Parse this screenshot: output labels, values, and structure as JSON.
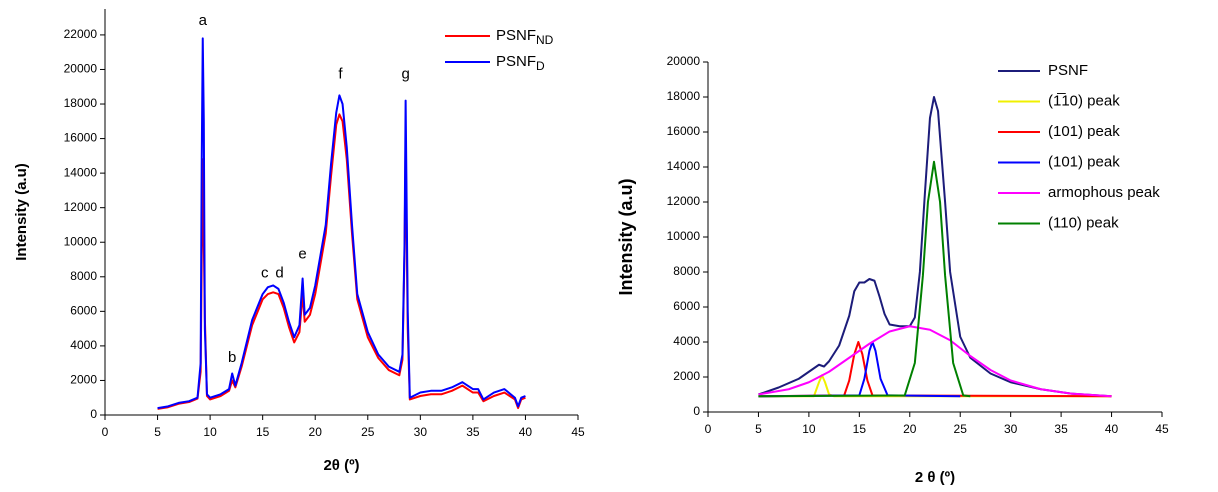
{
  "chart_data": [
    {
      "type": "line",
      "xlabel": "2θ (º)",
      "ylabel": "Intensity (a.u)",
      "xlim": [
        0,
        45
      ],
      "xticks": [
        0,
        5,
        10,
        15,
        20,
        25,
        30,
        35,
        40,
        45
      ],
      "ylim": [
        0,
        23500
      ],
      "yticks": [
        0,
        2000,
        4000,
        6000,
        8000,
        10000,
        12000,
        14000,
        16000,
        18000,
        20000,
        22000
      ],
      "legend": "upper right",
      "x": [
        5,
        6,
        7,
        8,
        8.8,
        9.1,
        9.2,
        9.3,
        9.4,
        9.5,
        9.7,
        10,
        11,
        11.8,
        12.1,
        12.4,
        13,
        14,
        15,
        15.5,
        16,
        16.5,
        17,
        17.5,
        18,
        18.5,
        18.8,
        19,
        19.5,
        20,
        21,
        21.5,
        22,
        22.3,
        22.6,
        23,
        23.5,
        24,
        25,
        26,
        27,
        28,
        28.3,
        28.5,
        28.6,
        28.8,
        29,
        30,
        31,
        32,
        33,
        34,
        35,
        35.5,
        36,
        37,
        38,
        39,
        39.3,
        39.6,
        40
      ],
      "series": [
        {
          "name": "PSNF",
          "name_sub": "ND",
          "color": "#ff0000",
          "values": [
            350,
            450,
            650,
            750,
            950,
            2500,
            9000,
            14800,
            10000,
            5600,
            1100,
            900,
            1100,
            1400,
            2000,
            1600,
            2800,
            5200,
            6700,
            7000,
            7100,
            7000,
            6200,
            5100,
            4200,
            4800,
            7000,
            5400,
            5800,
            7000,
            10500,
            13800,
            16800,
            17400,
            17000,
            14800,
            10500,
            6700,
            4500,
            3300,
            2600,
            2300,
            3200,
            9500,
            16000,
            5000,
            900,
            1100,
            1200,
            1200,
            1400,
            1700,
            1300,
            1300,
            800,
            1100,
            1300,
            900,
            400,
            900,
            1000
          ]
        },
        {
          "name": "PSNF",
          "name_sub": "D",
          "color": "#0000ff",
          "values": [
            400,
            500,
            700,
            800,
            1000,
            3000,
            14500,
            21800,
            17000,
            5000,
            1200,
            1000,
            1200,
            1500,
            2400,
            1700,
            3000,
            5500,
            7000,
            7400,
            7500,
            7300,
            6500,
            5400,
            4500,
            5200,
            7900,
            5800,
            6200,
            7500,
            11000,
            14500,
            17500,
            18500,
            18000,
            15500,
            11000,
            7000,
            4800,
            3500,
            2800,
            2500,
            3500,
            10000,
            18200,
            6000,
            1000,
            1300,
            1400,
            1400,
            1600,
            1900,
            1500,
            1500,
            900,
            1300,
            1500,
            1000,
            500,
            1000,
            1100
          ]
        }
      ],
      "annotations": [
        {
          "text": "a",
          "x": 9.3,
          "y": 22800
        },
        {
          "text": "b",
          "x": 12.1,
          "y": 3300
        },
        {
          "text": "c",
          "x": 15.2,
          "y": 8200
        },
        {
          "text": "d",
          "x": 16.6,
          "y": 8200
        },
        {
          "text": "e",
          "x": 18.8,
          "y": 9300
        },
        {
          "text": "f",
          "x": 22.4,
          "y": 19700
        },
        {
          "text": "g",
          "x": 28.6,
          "y": 19700
        }
      ]
    },
    {
      "type": "line",
      "xlabel": "2 θ (º)",
      "ylabel": "Intensity (a.u)",
      "xlim": [
        0,
        45
      ],
      "xticks": [
        0,
        5,
        10,
        15,
        20,
        25,
        30,
        35,
        40,
        45
      ],
      "ylim": [
        0,
        20000
      ],
      "yticks": [
        0,
        2000,
        4000,
        6000,
        8000,
        10000,
        12000,
        14000,
        16000,
        18000,
        20000
      ],
      "legend": "right",
      "series": [
        {
          "name": "PSNF",
          "color": "#1c1c7a",
          "x": [
            5,
            7,
            9,
            10,
            11,
            11.5,
            12,
            13,
            14,
            14.5,
            15,
            15.5,
            16,
            16.5,
            17,
            17.5,
            18,
            19,
            20,
            20.5,
            21,
            21.5,
            22,
            22.4,
            22.8,
            23.5,
            24,
            25,
            26,
            28,
            30,
            33,
            36,
            40
          ],
          "values": [
            1000,
            1400,
            1900,
            2300,
            2700,
            2600,
            2900,
            3800,
            5500,
            6900,
            7400,
            7400,
            7600,
            7500,
            6600,
            5600,
            5000,
            4900,
            4900,
            5400,
            8000,
            12500,
            16800,
            18000,
            17200,
            12000,
            8000,
            4300,
            3100,
            2200,
            1700,
            1300,
            1050,
            900
          ]
        },
        {
          "name": "(1̅10) peak",
          "color": "#f0f000",
          "x": [
            5,
            10.5,
            11,
            11.3,
            11.6,
            12,
            12.5,
            40
          ],
          "values": [
            900,
            900,
            1700,
            2100,
            1700,
            1000,
            900,
            900
          ]
        },
        {
          "name": "(101) peak",
          "color": "#ff0000",
          "x": [
            5,
            13.5,
            14,
            14.5,
            14.9,
            15.3,
            15.8,
            16.3,
            40
          ],
          "values": [
            900,
            950,
            1800,
            3300,
            4000,
            3300,
            1800,
            950,
            900
          ]
        },
        {
          "name": "(101) peak",
          "color": "#0000ff",
          "x": [
            5,
            15,
            15.5,
            16,
            16.3,
            16.6,
            17.1,
            17.8,
            25
          ],
          "values": [
            900,
            950,
            1900,
            3500,
            4000,
            3500,
            1900,
            950,
            900
          ]
        },
        {
          "name": "armophous peak",
          "color": "#ff00ff",
          "x": [
            5,
            8,
            10,
            12,
            14,
            16,
            18,
            20,
            22,
            24,
            26,
            28,
            30,
            33,
            36,
            40
          ],
          "values": [
            1000,
            1300,
            1700,
            2300,
            3100,
            3900,
            4600,
            4900,
            4700,
            4100,
            3200,
            2400,
            1800,
            1300,
            1050,
            900
          ]
        },
        {
          "name": "(110) peak",
          "color": "#008000",
          "x": [
            5,
            19.5,
            20.5,
            21.3,
            21.8,
            22.4,
            23,
            23.5,
            24.3,
            25.3,
            26
          ],
          "values": [
            900,
            950,
            2800,
            7800,
            12000,
            14300,
            12000,
            7800,
            2800,
            950,
            900
          ]
        }
      ]
    }
  ]
}
